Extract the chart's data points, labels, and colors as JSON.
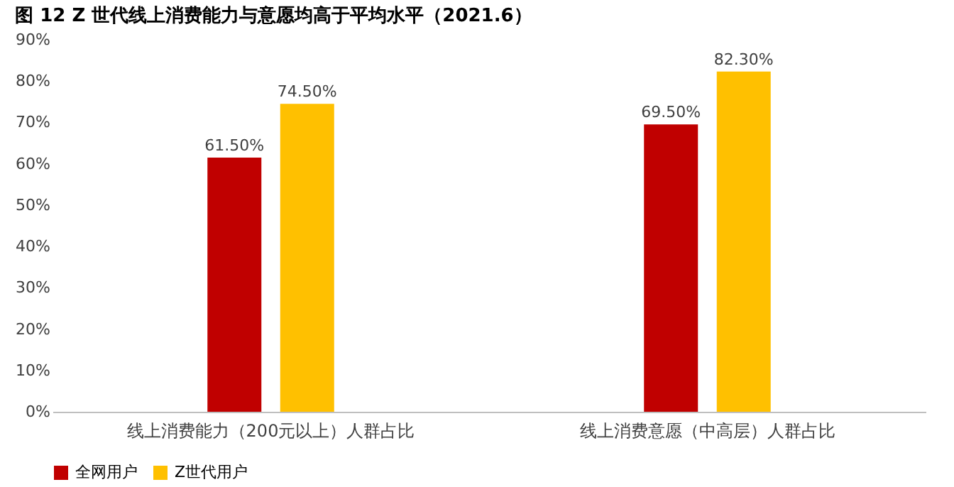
{
  "chart_data": {
    "type": "bar",
    "title": "图 12 Z 世代线上消费能力与意愿均高于平均水平（2021.6）",
    "categories": [
      "线上消费能力（200元以上）人群占比",
      "线上消费意愿（中高层）人群占比"
    ],
    "series": [
      {
        "name": "全网用户",
        "color": "#c00000",
        "values": [
          61.5,
          69.5
        ],
        "value_labels": [
          "61.50%",
          "69.50%"
        ]
      },
      {
        "name": "Z世代用户",
        "color": "#ffc000",
        "values": [
          74.5,
          82.3
        ],
        "value_labels": [
          "74.50%",
          "82.30%"
        ]
      }
    ],
    "ylim": [
      0,
      90
    ],
    "yticks": [
      {
        "value": 0,
        "label": "0%"
      },
      {
        "value": 10,
        "label": "10%"
      },
      {
        "value": 20,
        "label": "20%"
      },
      {
        "value": 30,
        "label": "30%"
      },
      {
        "value": 40,
        "label": "40%"
      },
      {
        "value": 50,
        "label": "50%"
      },
      {
        "value": 60,
        "label": "60%"
      },
      {
        "value": 70,
        "label": "70%"
      },
      {
        "value": 80,
        "label": "80%"
      },
      {
        "value": 90,
        "label": "90%"
      }
    ],
    "grid": false,
    "legend": "bottom"
  }
}
